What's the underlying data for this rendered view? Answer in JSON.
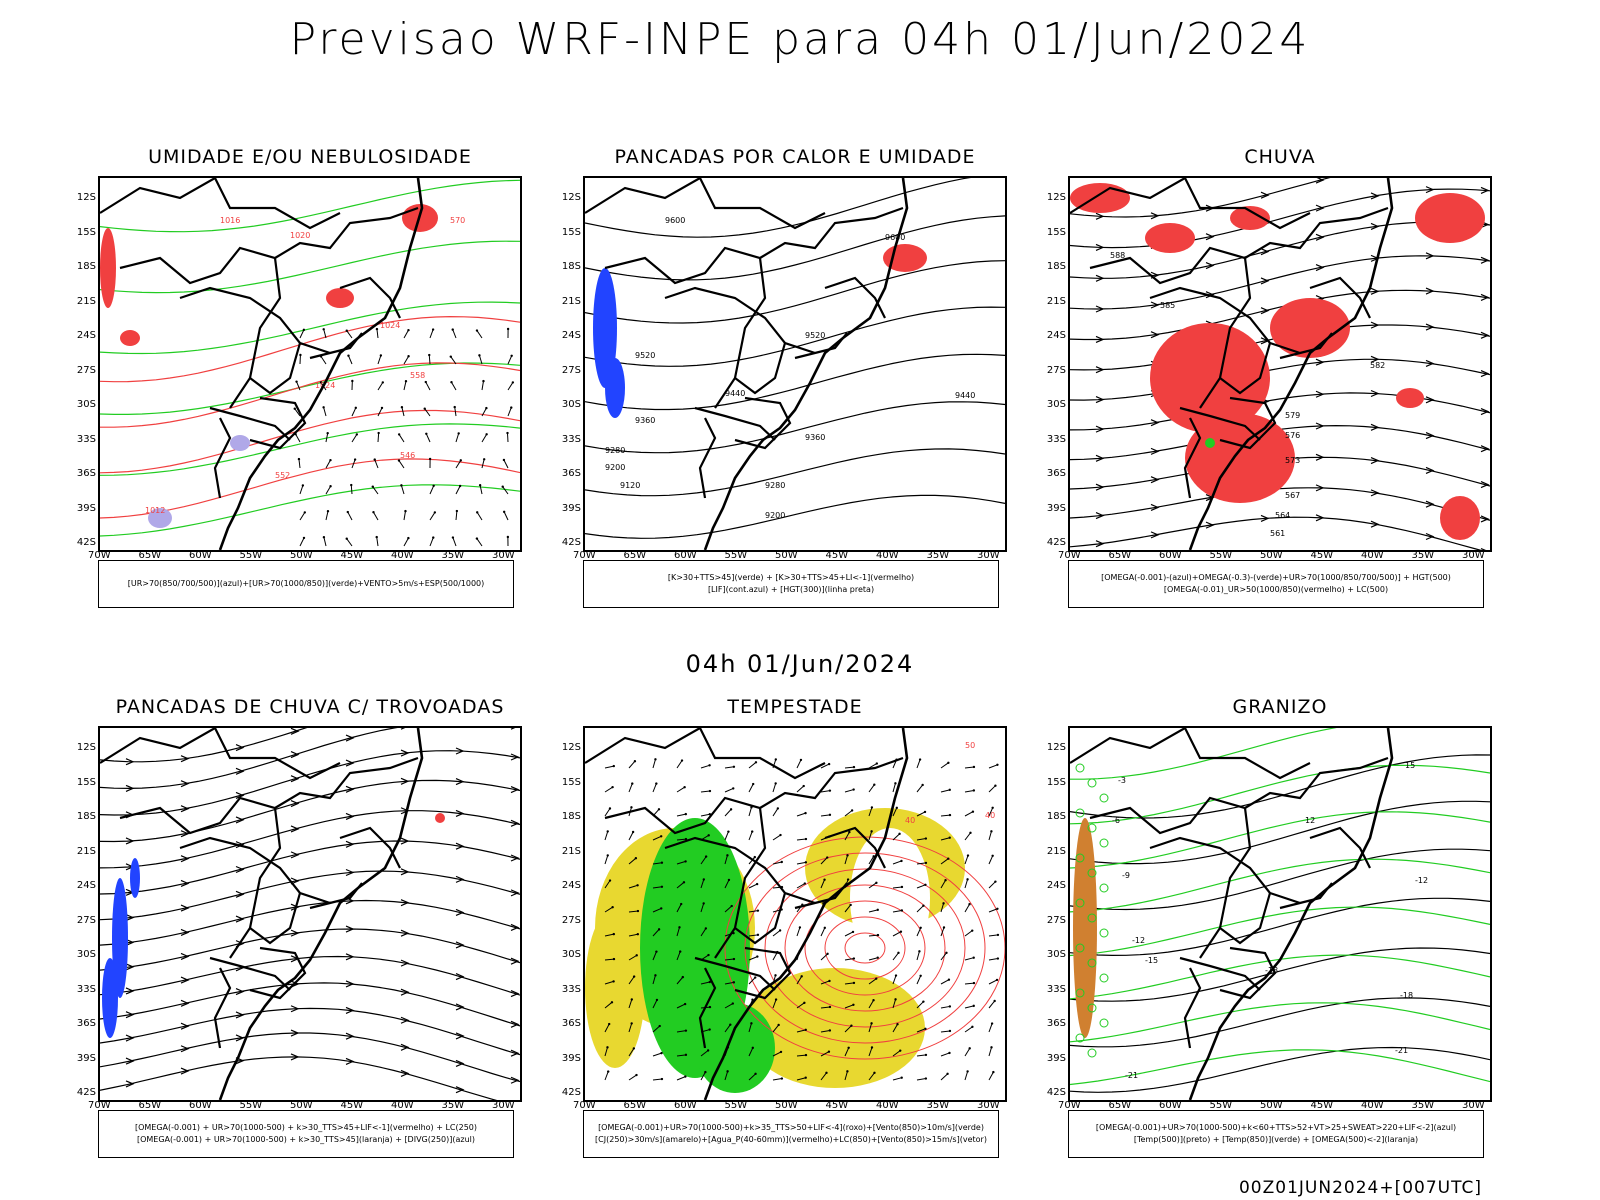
{
  "title": "Previsao WRF-INPE  para 04h 01/Jun/2024",
  "middle_title": "04h 01/Jun/2024",
  "footer": "00Z01JUN2024+[007UTC]",
  "axes": {
    "lat_labels": [
      "12S",
      "15S",
      "18S",
      "21S",
      "24S",
      "27S",
      "30S",
      "33S",
      "36S",
      "39S",
      "42S"
    ],
    "lon_labels": [
      "70W",
      "65W",
      "60W",
      "55W",
      "50W",
      "45W",
      "40W",
      "35W",
      "30W"
    ]
  },
  "colors": {
    "red": "#f04040",
    "green": "#22cc22",
    "blue": "#2244ff",
    "yellow": "#e8d830",
    "orange": "#d08030",
    "purple": "#9966cc",
    "black": "#000000"
  },
  "panels": [
    {
      "title": "UMIDADE E/OU NEBULOSIDADE",
      "legend": [
        "[UR>70(850/700/500)](azul)+[UR>70(1000/850)](verde)+VENTO>5m/s+ESP(500/1000)"
      ],
      "contour_labels": [
        "1016",
        "1020",
        "1024",
        "570",
        "558",
        "552",
        "546",
        "1012"
      ]
    },
    {
      "title": "PANCADAS POR CALOR E UMIDADE",
      "legend": [
        "[K>30+TTS>45](verde) + [K>30+TTS>45+LI<-1](vermelho)",
        "[LIF](cont.azul) + [HGT(300)](linha preta)"
      ],
      "contour_labels": [
        "9600",
        "9520",
        "9440",
        "9360",
        "9280",
        "9200",
        "9120"
      ]
    },
    {
      "title": "CHUVA",
      "legend": [
        "[OMEGA(-0.001)-(azul)+OMEGA(-0.3)-(verde)+UR>70(1000/850/700/500)] + HGT(500)",
        "[OMEGA(-0.01)_UR>50(1000/850)(vermelho) + LC(500)"
      ],
      "contour_labels": [
        "588",
        "585",
        "582",
        "579",
        "576",
        "573",
        "567",
        "564",
        "561"
      ]
    },
    {
      "title": "PANCADAS DE CHUVA C/ TROVOADAS",
      "legend": [
        "[OMEGA(-0.001) + UR>70(1000-500) + k>30_TTS>45+LIF<-1](vermelho) + LC(250)",
        "[OMEGA(-0.001) + UR>70(1000-500) + k>30_TTS>45](laranja) + [DIVG(250)](azul)"
      ],
      "contour_labels": []
    },
    {
      "title": "TEMPESTADE",
      "legend": [
        "[OMEGA(-0.001)+UR>70(1000-500)+k>35_TTS>50+LIF<-4](roxo)+[Vento(850)>10m/s](verde)",
        "[CJ(250)>30m/s](amarelo)+[Agua_P(40-60mm)](vermelho)+LC(850)+[Vento(850)>15m/s](vetor)"
      ],
      "contour_labels": [
        "40",
        "50"
      ]
    },
    {
      "title": "GRANIZO",
      "legend": [
        "[OMEGA(-0.001)+UR>70(1000-500)+k<60+TTS>52+VT>25+SWEAT>220+LIF<-2](azul)",
        "[Temp(500)](preto) + [Temp(850)](verde) + [OMEGA(500)<-2](laranja)"
      ],
      "contour_labels": [
        "-3",
        "-6",
        "-9",
        "-12",
        "-15",
        "-18",
        "-21",
        "15",
        "12"
      ]
    }
  ]
}
